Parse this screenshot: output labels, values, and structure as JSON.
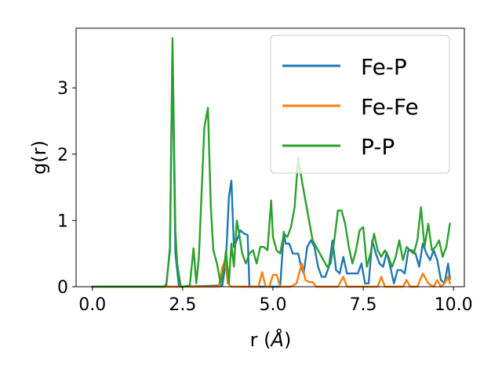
{
  "chart_data": {
    "type": "line",
    "xlabel_prefix": "r (",
    "xlabel_unit": "Å",
    "xlabel_suffix": ")",
    "ylabel": "g(r)",
    "xlim": [
      -0.45,
      10.3
    ],
    "ylim": [
      0,
      3.9
    ],
    "xticks": [
      0.0,
      2.5,
      5.0,
      7.5,
      10.0
    ],
    "xtick_labels": [
      "0.0",
      "2.5",
      "5.0",
      "7.5",
      "10.0"
    ],
    "yticks": [
      0,
      1,
      2,
      3
    ],
    "ytick_labels": [
      "0",
      "1",
      "2",
      "3"
    ],
    "grid": false,
    "legend_position": "top-right",
    "series": [
      {
        "name": "Fe-P",
        "color": "#1f77b4",
        "x": [
          0.0,
          0.5,
          1.0,
          1.5,
          2.0,
          2.05,
          2.15,
          2.22,
          2.3,
          2.4,
          2.5,
          3.6,
          3.7,
          3.78,
          3.85,
          3.92,
          4.0,
          4.1,
          4.2,
          4.3,
          4.35,
          4.5,
          5.0,
          5.1,
          5.2,
          5.3,
          5.35,
          5.45,
          5.55,
          5.6,
          5.7,
          5.78,
          5.85,
          5.95,
          6.05,
          6.15,
          6.25,
          6.35,
          6.45,
          6.55,
          6.65,
          6.75,
          6.85,
          6.95,
          7.05,
          7.15,
          7.25,
          7.35,
          7.45,
          7.55,
          7.65,
          7.75,
          7.85,
          7.95,
          8.05,
          8.15,
          8.25,
          8.35,
          8.45,
          8.55,
          8.65,
          8.75,
          8.85,
          8.95,
          9.05,
          9.15,
          9.25,
          9.35,
          9.45,
          9.55,
          9.65,
          9.75,
          9.85,
          9.9
        ],
        "values": [
          0,
          0,
          0,
          0,
          0,
          0.02,
          0.6,
          3.6,
          0.5,
          0,
          0,
          0.02,
          0.4,
          1.35,
          1.6,
          0.6,
          0.7,
          0.85,
          0.8,
          0.78,
          0,
          0,
          0,
          0,
          0,
          0.83,
          0.65,
          0.65,
          0.5,
          0.5,
          0.5,
          0.3,
          0.2,
          0.6,
          0.7,
          0.6,
          0.3,
          0.15,
          0.15,
          0.3,
          0.7,
          0.25,
          0.2,
          0.45,
          0.2,
          0.2,
          0.2,
          0.2,
          0.35,
          0.05,
          0.05,
          0.7,
          0.5,
          0.35,
          0.3,
          0.52,
          0.3,
          0.05,
          0.25,
          0.25,
          0.2,
          0.55,
          0.55,
          0.5,
          0.3,
          0.65,
          0.5,
          0.4,
          0.55,
          0.4,
          0.1,
          0.05,
          0.35,
          0.12
        ]
      },
      {
        "name": "Fe-Fe",
        "color": "#ff7f0e",
        "x": [
          0.0,
          1.0,
          2.0,
          3.0,
          3.5,
          3.6,
          3.68,
          3.75,
          3.85,
          4.6,
          4.7,
          4.8,
          4.9,
          5.0,
          5.1,
          5.2,
          5.3,
          5.5,
          5.65,
          5.8,
          5.9,
          6.0,
          6.1,
          6.2,
          6.3,
          6.8,
          6.95,
          7.05,
          7.2,
          7.9,
          8.0,
          8.1,
          8.2,
          8.6,
          8.7,
          8.8,
          8.9,
          9.0,
          9.15,
          9.3,
          9.45,
          9.55,
          9.65,
          9.75,
          9.85,
          9.9
        ],
        "values": [
          0,
          0,
          0,
          0,
          0,
          0.3,
          0.4,
          0.05,
          0,
          0,
          0.22,
          0,
          0,
          0.18,
          0.18,
          0,
          0,
          0,
          0.05,
          0.35,
          0.1,
          0.07,
          0.07,
          0,
          0,
          0,
          0.15,
          0,
          0,
          0,
          0.15,
          0,
          0,
          0,
          0.1,
          0,
          0,
          0,
          0.2,
          0.05,
          0,
          0.1,
          0,
          0.05,
          0.15,
          0.05
        ]
      },
      {
        "name": "P-P",
        "color": "#2ca02c",
        "x": [
          0.0,
          0.5,
          1.0,
          1.5,
          2.0,
          2.05,
          2.15,
          2.22,
          2.3,
          2.35,
          2.45,
          2.5,
          2.7,
          2.8,
          2.88,
          2.95,
          3.1,
          3.2,
          3.28,
          3.35,
          3.45,
          3.55,
          3.65,
          3.7,
          3.78,
          3.85,
          3.92,
          4.0,
          4.05,
          4.15,
          4.25,
          4.35,
          4.45,
          4.55,
          4.65,
          4.75,
          4.85,
          4.95,
          5.0,
          5.1,
          5.2,
          5.3,
          5.4,
          5.5,
          5.6,
          5.7,
          5.8,
          5.9,
          6.0,
          6.1,
          6.2,
          6.3,
          6.4,
          6.5,
          6.6,
          6.7,
          6.8,
          6.9,
          7.0,
          7.1,
          7.2,
          7.3,
          7.4,
          7.5,
          7.6,
          7.7,
          7.8,
          7.9,
          8.0,
          8.1,
          8.2,
          8.3,
          8.4,
          8.5,
          8.6,
          8.7,
          8.8,
          8.9,
          9.0,
          9.1,
          9.2,
          9.3,
          9.4,
          9.5,
          9.6,
          9.7,
          9.8,
          9.9
        ],
        "values": [
          0,
          0,
          0,
          0,
          0,
          0.05,
          0.55,
          3.75,
          0.85,
          0.35,
          0,
          0,
          0.02,
          0.58,
          0.05,
          0.45,
          2.4,
          2.7,
          1.2,
          0.55,
          0.35,
          0.05,
          0.3,
          0.55,
          0.05,
          0.65,
          0.3,
          1.0,
          0.85,
          0.5,
          0.35,
          0.5,
          0.55,
          0.35,
          0.6,
          0.6,
          0.55,
          1.3,
          0.75,
          0.55,
          0.5,
          0.8,
          0.75,
          0.9,
          1.2,
          1.95,
          1.6,
          1.3,
          1.0,
          0.7,
          0.6,
          0.5,
          0.4,
          0.3,
          0.35,
          0.7,
          1.15,
          1.15,
          0.95,
          0.6,
          0.35,
          0.55,
          0.85,
          0.9,
          0.3,
          0.5,
          0.8,
          0.55,
          0.45,
          0.55,
          0.45,
          0.3,
          0.45,
          0.7,
          0.4,
          0.6,
          0.55,
          0.5,
          0.7,
          1.2,
          0.6,
          0.95,
          0.55,
          0.6,
          0.7,
          0.45,
          0.6,
          0.95
        ]
      }
    ]
  }
}
